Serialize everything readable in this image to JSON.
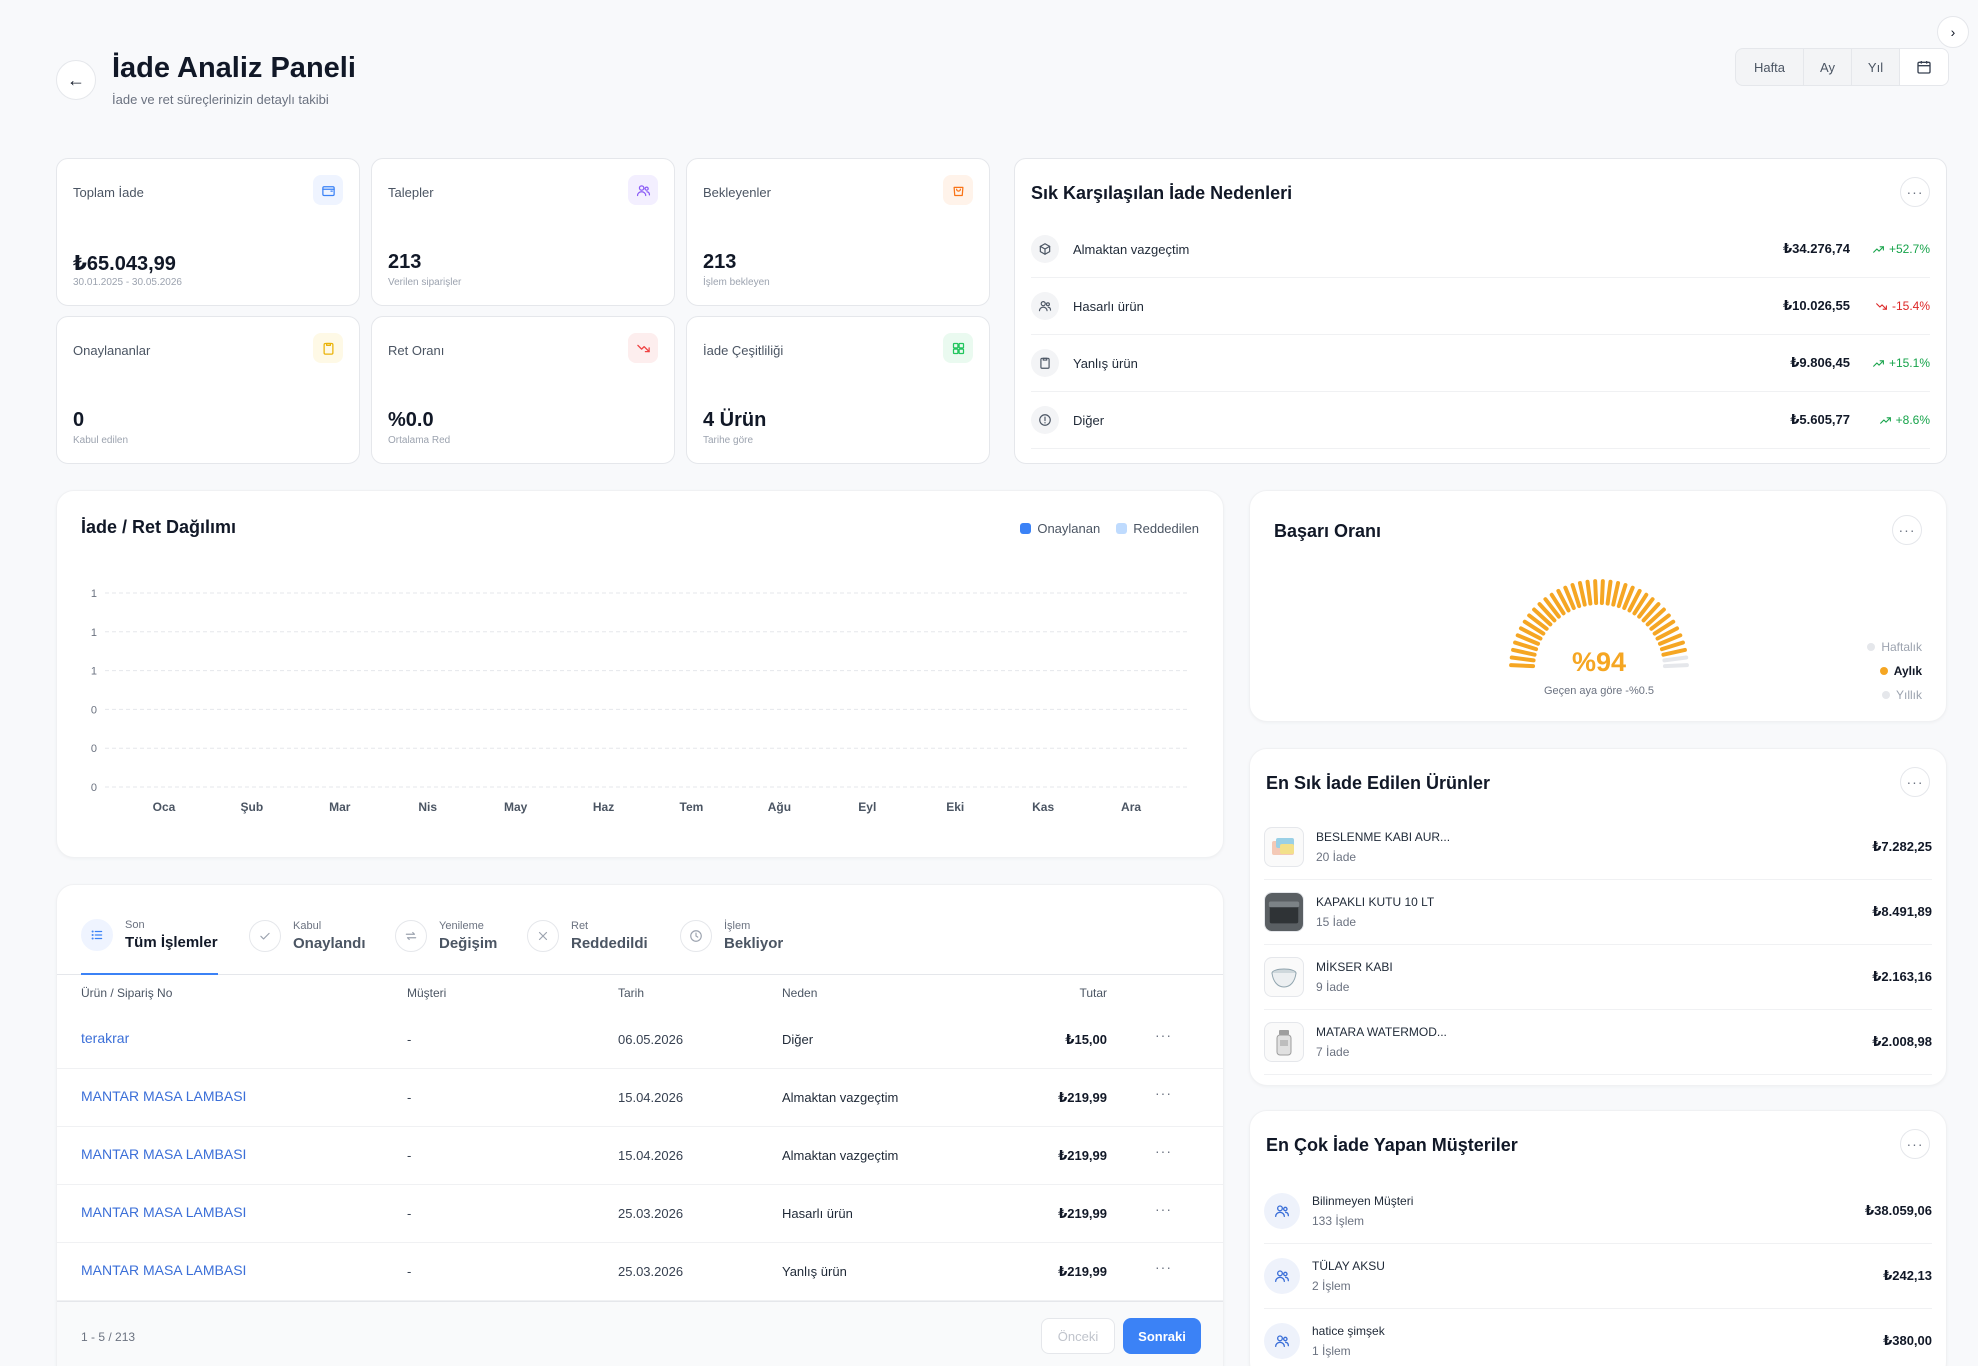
{
  "header": {
    "title": "İade Analiz Paneli",
    "subtitle": "İade ve ret süreçlerinizin detaylı takibi",
    "periods": [
      "Hafta",
      "Ay",
      "Yıl"
    ]
  },
  "stats": [
    {
      "label": "Toplam İade",
      "value": "₺65.043,99",
      "sub": "30.01.2025 - 30.05.2026",
      "icon": "wallet-icon",
      "color": "#3b82f6",
      "bg": "#eff4ff"
    },
    {
      "label": "Talepler",
      "value": "213",
      "sub": "Verilen siparişler",
      "icon": "users-icon",
      "color": "#8b5cf6",
      "bg": "#f3efff"
    },
    {
      "label": "Bekleyenler",
      "value": "213",
      "sub": "İşlem bekleyen",
      "icon": "bag-icon",
      "color": "#f97316",
      "bg": "#fff3ea"
    },
    {
      "label": "Onaylananlar",
      "value": "0",
      "sub": "Kabul edilen",
      "icon": "clipboard-icon",
      "color": "#eab308",
      "bg": "#fef9e6"
    },
    {
      "label": "Ret Oranı",
      "value": "%0.0",
      "sub": "Ortalama Red",
      "icon": "trend-down-icon",
      "color": "#ef4444",
      "bg": "#fdeeee"
    },
    {
      "label": "İade Çeşitliliği",
      "value": "4 Ürün",
      "sub": "Tarihe göre",
      "icon": "grid-icon",
      "color": "#22c55e",
      "bg": "#eafaf0"
    }
  ],
  "reasons": {
    "title": "Sık Karşılaşılan İade Nedenleri",
    "items": [
      {
        "name": "Almaktan vazgeçtim",
        "amount": "₺34.276,74",
        "change": "+52.7%",
        "dir": "up",
        "icon": "box-icon"
      },
      {
        "name": "Hasarlı ürün",
        "amount": "₺10.026,55",
        "change": "-15.4%",
        "dir": "down",
        "icon": "users-icon"
      },
      {
        "name": "Yanlış ürün",
        "amount": "₺9.806,45",
        "change": "+15.1%",
        "dir": "up",
        "icon": "clipboard-icon"
      },
      {
        "name": "Diğer",
        "amount": "₺5.605,77",
        "change": "+8.6%",
        "dir": "up",
        "icon": "alert-icon"
      }
    ]
  },
  "chart_data": {
    "type": "bar",
    "title": "İade / Ret Dağılımı",
    "categories": [
      "Oca",
      "Şub",
      "Mar",
      "Nis",
      "May",
      "Haz",
      "Tem",
      "Ağu",
      "Eyl",
      "Eki",
      "Kas",
      "Ara"
    ],
    "series": [
      {
        "name": "Onaylanan",
        "color": "#3b82f6",
        "values": [
          0,
          0,
          0,
          0,
          0,
          0,
          0,
          0,
          0,
          0,
          0,
          0
        ]
      },
      {
        "name": "Reddedilen",
        "color": "#bfdbfe",
        "values": [
          0,
          0,
          0,
          0,
          0,
          0,
          0,
          0,
          0,
          0,
          0,
          0
        ]
      }
    ],
    "yticks": [
      "1",
      "1",
      "1",
      "0",
      "0",
      "0"
    ],
    "ylim": [
      0,
      1
    ],
    "grid": true,
    "legend": "top-right"
  },
  "success": {
    "title": "Başarı Oranı",
    "value": "%94",
    "percent": 94,
    "note": "Geçen aya göre -%0.5",
    "legend": [
      "Haftalık",
      "Aylık",
      "Yıllık"
    ],
    "active": 1,
    "color": "#f5a623"
  },
  "tabs": [
    {
      "small": "Son",
      "big": "Tüm İşlemler",
      "icon": "list-icon",
      "active": true
    },
    {
      "small": "Kabul",
      "big": "Onaylandı",
      "icon": "check-icon",
      "active": false
    },
    {
      "small": "Yenileme",
      "big": "Değişim",
      "icon": "swap-icon",
      "active": false
    },
    {
      "small": "Ret",
      "big": "Reddedildi",
      "icon": "x-icon",
      "active": false
    },
    {
      "small": "İşlem",
      "big": "Bekliyor",
      "icon": "clock-icon",
      "active": false
    }
  ],
  "table": {
    "headers": [
      "Ürün / Sipariş No",
      "Müşteri",
      "Tarih",
      "Neden",
      "Tutar"
    ],
    "rows": [
      {
        "product": "terakrar",
        "customer": "-",
        "date": "06.05.2026",
        "reason": "Diğer",
        "amount": "₺15,00"
      },
      {
        "product": "MANTAR MASA LAMBASI",
        "customer": "-",
        "date": "15.04.2026",
        "reason": "Almaktan vazgeçtim",
        "amount": "₺219,99"
      },
      {
        "product": "MANTAR MASA LAMBASI",
        "customer": "-",
        "date": "15.04.2026",
        "reason": "Almaktan vazgeçtim",
        "amount": "₺219,99"
      },
      {
        "product": "MANTAR MASA LAMBASI",
        "customer": "-",
        "date": "25.03.2026",
        "reason": "Hasarlı ürün",
        "amount": "₺219,99"
      },
      {
        "product": "MANTAR MASA LAMBASI",
        "customer": "-",
        "date": "25.03.2026",
        "reason": "Yanlış ürün",
        "amount": "₺219,99"
      }
    ],
    "pagination": "1 - 5 / 213",
    "prev": "Önceki",
    "next": "Sonraki"
  },
  "products": {
    "title": "En Sık İade Edilen Ürünler",
    "items": [
      {
        "name": "BESLENME KABI AUR...",
        "count": "20 İade",
        "amount": "₺7.282,25",
        "thumb": "lunchbox"
      },
      {
        "name": "KAPAKLI KUTU 10 LT",
        "count": "15 İade",
        "amount": "₺8.491,89",
        "thumb": "box"
      },
      {
        "name": "MİKSER KABI",
        "count": "9 İade",
        "amount": "₺2.163,16",
        "thumb": "bowl"
      },
      {
        "name": "MATARA WATERMOD...",
        "count": "7 İade",
        "amount": "₺2.008,98",
        "thumb": "bottle"
      }
    ]
  },
  "customers": {
    "title": "En Çok İade Yapan Müşteriler",
    "items": [
      {
        "name": "Bilinmeyen Müşteri",
        "count": "133 İşlem",
        "amount": "₺38.059,06"
      },
      {
        "name": "TÜLAY AKSU",
        "count": "2 İşlem",
        "amount": "₺242,13"
      },
      {
        "name": "hatice şimşek",
        "count": "1 İşlem",
        "amount": "₺380,00"
      }
    ]
  }
}
